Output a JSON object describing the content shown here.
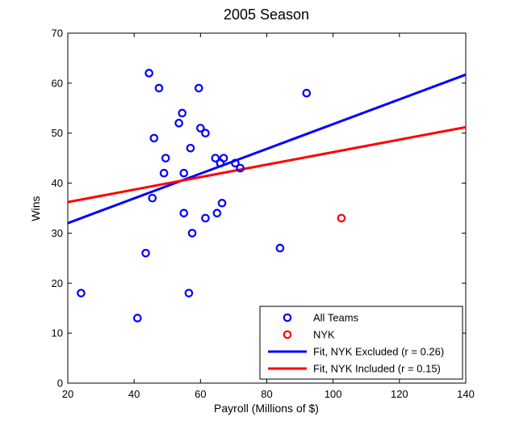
{
  "chart_data": {
    "type": "scatter",
    "title": "2005 Season",
    "xlabel": "Payroll (Millions of $)",
    "ylabel": "Wins",
    "xlim": [
      20,
      140
    ],
    "ylim": [
      0,
      70
    ],
    "xticks": [
      20,
      40,
      60,
      80,
      100,
      120,
      140
    ],
    "yticks": [
      0,
      10,
      20,
      30,
      40,
      50,
      60,
      70
    ],
    "grid": false,
    "legend_position": "bottom-right",
    "series": [
      {
        "name": "All Teams",
        "kind": "scatter",
        "marker": "circle",
        "color": "#0000ff",
        "points": [
          [
            24,
            18
          ],
          [
            41,
            13
          ],
          [
            43.5,
            26
          ],
          [
            44.5,
            62
          ],
          [
            45.5,
            37
          ],
          [
            46,
            49
          ],
          [
            47.5,
            59
          ],
          [
            49,
            42
          ],
          [
            49.5,
            45
          ],
          [
            53.5,
            52
          ],
          [
            54.5,
            54
          ],
          [
            55,
            42
          ],
          [
            55,
            34
          ],
          [
            56.5,
            18
          ],
          [
            57,
            47
          ],
          [
            57.5,
            30
          ],
          [
            59.5,
            59
          ],
          [
            60,
            51
          ],
          [
            61.5,
            33
          ],
          [
            61.5,
            50
          ],
          [
            64.5,
            45
          ],
          [
            65,
            34
          ],
          [
            66,
            44
          ],
          [
            66.5,
            36
          ],
          [
            67,
            45
          ],
          [
            70.5,
            44
          ],
          [
            72,
            43
          ],
          [
            84,
            27
          ],
          [
            92,
            58
          ]
        ]
      },
      {
        "name": "NYK",
        "kind": "scatter",
        "marker": "circle",
        "color": "#ff0000",
        "points": [
          [
            102.5,
            33
          ]
        ]
      },
      {
        "name": "Fit, NYK Excluded (r = 0.26)",
        "kind": "line",
        "color": "#0000ff",
        "points": [
          [
            20,
            32
          ],
          [
            140,
            61.7
          ]
        ]
      },
      {
        "name": "Fit, NYK Included (r = 0.15)",
        "kind": "line",
        "color": "#ff0000",
        "points": [
          [
            20,
            36.2
          ],
          [
            140,
            51.2
          ]
        ]
      }
    ]
  }
}
